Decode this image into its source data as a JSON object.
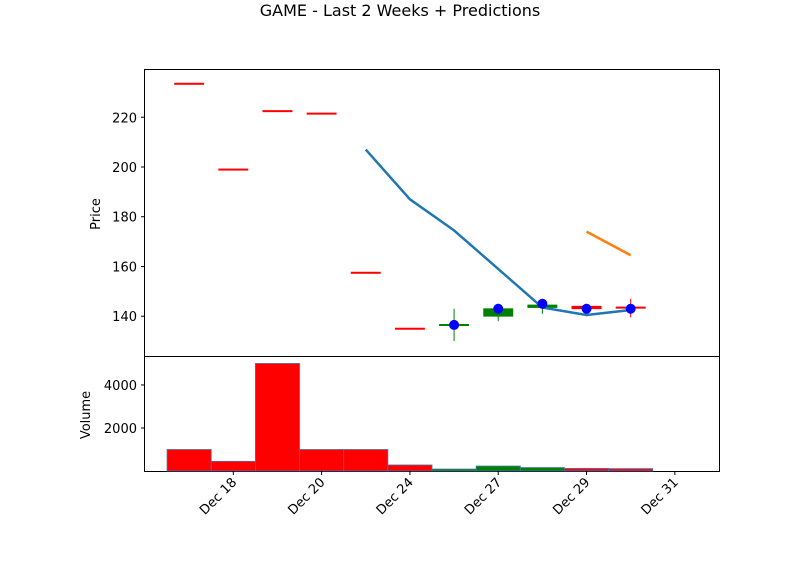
{
  "chart_data": {
    "type": "candlestick",
    "title": "GAME - Last 2 Weeks + Predictions",
    "x_tick_labels": [
      "Dec 18",
      "Dec 20",
      "Dec 24",
      "Dec 27",
      "Dec 29",
      "Dec 31"
    ],
    "x_tick_positions": [
      1,
      3,
      5,
      7,
      9,
      11
    ],
    "price_panel": {
      "ylabel": "Price",
      "ylim": [
        124,
        239
      ],
      "yticks": [
        140,
        160,
        180,
        200,
        220
      ],
      "candles": [
        {
          "x": 0,
          "open": 233.5,
          "close": 233.5,
          "high": 233.5,
          "low": 233.5,
          "color": "#ff0000"
        },
        {
          "x": 1,
          "open": 199,
          "close": 199,
          "high": 199,
          "low": 199,
          "color": "#ff0000"
        },
        {
          "x": 2,
          "open": 222.5,
          "close": 222.5,
          "high": 222.5,
          "low": 222.5,
          "color": "#ff0000"
        },
        {
          "x": 3,
          "open": 221.5,
          "close": 221.5,
          "high": 221.5,
          "low": 221.5,
          "color": "#ff0000"
        },
        {
          "x": 4,
          "open": 157.5,
          "close": 157.5,
          "high": 157.5,
          "low": 157.5,
          "color": "#ff0000"
        },
        {
          "x": 5,
          "open": 135,
          "close": 135,
          "high": 135,
          "low": 135,
          "color": "#ff0000"
        },
        {
          "x": 6,
          "open": 136,
          "close": 136.5,
          "high": 143,
          "low": 130,
          "color": "#008000"
        },
        {
          "x": 7,
          "open": 140,
          "close": 143,
          "high": 145,
          "low": 138,
          "color": "#008000"
        },
        {
          "x": 8,
          "open": 143.5,
          "close": 144.5,
          "high": 147,
          "low": 141,
          "color": "#008000"
        },
        {
          "x": 9,
          "open": 144,
          "close": 143,
          "high": 145,
          "low": 140,
          "color": "#ff0000"
        },
        {
          "x": 10,
          "open": 143.5,
          "close": 143,
          "high": 147,
          "low": 139.5,
          "color": "#ff0000"
        }
      ],
      "markers": [
        {
          "x": 6,
          "y": 136.5
        },
        {
          "x": 7,
          "y": 143
        },
        {
          "x": 8,
          "y": 145
        },
        {
          "x": 9,
          "y": 143
        },
        {
          "x": 10,
          "y": 143
        }
      ],
      "marker_color": "#0000ff",
      "series": [
        {
          "color": "#1f77b4",
          "points": [
            [
              4,
              207
            ],
            [
              5,
              187
            ],
            [
              6,
              174.5
            ],
            [
              7,
              159
            ],
            [
              8,
              143.5
            ],
            [
              9,
              140.5
            ],
            [
              10,
              142.5
            ]
          ]
        },
        {
          "color": "#ff7f0e",
          "points": [
            [
              9,
              174
            ],
            [
              10,
              164.5
            ]
          ]
        }
      ]
    },
    "volume_panel": {
      "ylabel": "Volume",
      "ylim": [
        0,
        5300
      ],
      "yticks": [
        2000,
        4000
      ],
      "bars": [
        {
          "x": 0,
          "value": 1000,
          "color": "#ff0000"
        },
        {
          "x": 1,
          "value": 450,
          "color": "#ff0000"
        },
        {
          "x": 2,
          "value": 5000,
          "color": "#ff0000"
        },
        {
          "x": 3,
          "value": 1000,
          "color": "#ff0000"
        },
        {
          "x": 4,
          "value": 1000,
          "color": "#ff0000"
        },
        {
          "x": 5,
          "value": 280,
          "color": "#ff0000"
        },
        {
          "x": 6,
          "value": 90,
          "color": "#008000"
        },
        {
          "x": 7,
          "value": 230,
          "color": "#008000"
        },
        {
          "x": 8,
          "value": 160,
          "color": "#008000"
        },
        {
          "x": 9,
          "value": 120,
          "color": "#ff0000"
        },
        {
          "x": 10,
          "value": 110,
          "color": "#ff0000"
        }
      ]
    },
    "x_range": [
      -1,
      12
    ],
    "grid": false
  }
}
